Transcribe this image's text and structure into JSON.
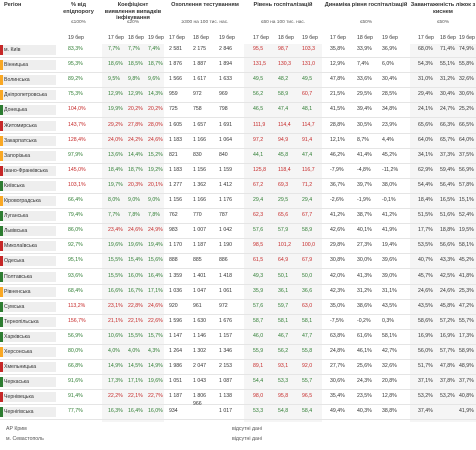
{
  "headers": {
    "region": "Регіон",
    "pct": "% від епідпорогу",
    "coef": "Коефіцієнт виявлення випадків інфікування",
    "cover": "Охоплення тестуванням",
    "hosp": "Рівень госпіталізацій",
    "dyn": "Динаміка рівня госпіталізацій",
    "beds": "Завантаженість ліжок з киснем"
  },
  "subheaders": {
    "pct": "≤100%",
    "coef": "≤20%",
    "cover": "≥300 на 100 тис. нас.",
    "hosp": "≤60 на 100 тис. нас.",
    "dyn": "≤50%",
    "beds": "≤50%",
    "pct_col": "19 бер",
    "dates": [
      "17 бер",
      "18 бер",
      "19 бер"
    ]
  },
  "rows": [
    {
      "region": "м. Київ",
      "bar": "#c62828",
      "pct": "83,3%",
      "coef": [
        "7,7%",
        "7,7%",
        "7,4%"
      ],
      "cover": [
        "2 581",
        "2 175",
        "2 846"
      ],
      "hosp": [
        "95,5",
        "98,7",
        "103,3"
      ],
      "dyn": [
        "35,8%",
        "33,9%",
        "36,9%"
      ],
      "beds": [
        "68,0%",
        "71,4%",
        "74,9%"
      ]
    },
    {
      "region": "Вінницька",
      "bar": "#f9a825",
      "pct": "95,3%",
      "coef": [
        "18,6%",
        "18,5%",
        "18,7%"
      ],
      "cover": [
        "1 876",
        "1 887",
        "1 894"
      ],
      "hosp": [
        "131,5",
        "130,3",
        "131,0"
      ],
      "dyn": [
        "12,9%",
        "7,4%",
        "6,0%"
      ],
      "beds": [
        "54,3%",
        "55,1%",
        "55,8%"
      ]
    },
    {
      "region": "Волинська",
      "bar": "#f9a825",
      "pct": "89,2%",
      "coef": [
        "9,5%",
        "9,8%",
        "9,6%"
      ],
      "cover": [
        "1 566",
        "1 617",
        "1 633"
      ],
      "hosp": [
        "49,5",
        "48,2",
        "49,5"
      ],
      "dyn": [
        "47,8%",
        "33,6%",
        "30,4%"
      ],
      "beds": [
        "31,0%",
        "31,2%",
        "32,6%"
      ]
    },
    {
      "region": "Дніпропетровська",
      "bar": "#f9a825",
      "pct": "75,3%",
      "coef": [
        "12,9%",
        "12,9%",
        "14,3%"
      ],
      "cover": [
        "959",
        "972",
        "969"
      ],
      "hosp": [
        "56,2",
        "58,9",
        "60,7"
      ],
      "dyn": [
        "21,5%",
        "29,5%",
        "28,5%"
      ],
      "beds": [
        "29,4%",
        "30,4%",
        "30,6%"
      ]
    },
    {
      "region": "Донецька",
      "bar": "#2e7d32",
      "pct": "104,0%",
      "coef": [
        "19,9%",
        "20,2%",
        "20,2%"
      ],
      "cover": [
        "725",
        "758",
        "798"
      ],
      "hosp": [
        "46,5",
        "47,4",
        "48,1"
      ],
      "dyn": [
        "41,5%",
        "39,4%",
        "34,8%"
      ],
      "beds": [
        "24,1%",
        "24,7%",
        "25,2%"
      ]
    },
    {
      "region": "Житомирська",
      "bar": "#c62828",
      "pct": "143,7%",
      "coef": [
        "29,2%",
        "27,8%",
        "28,0%"
      ],
      "cover": [
        "1 605",
        "1 657",
        "1 691"
      ],
      "hosp": [
        "111,9",
        "114,4",
        "114,7"
      ],
      "dyn": [
        "28,8%",
        "30,5%",
        "23,9%"
      ],
      "beds": [
        "65,6%",
        "66,3%",
        "66,5%"
      ]
    },
    {
      "region": "Закарпатська",
      "bar": "#f9a825",
      "pct": "128,4%",
      "coef": [
        "24,0%",
        "24,2%",
        "24,6%"
      ],
      "cover": [
        "1 183",
        "1 166",
        "1 064"
      ],
      "hosp": [
        "97,2",
        "94,9",
        "91,4"
      ],
      "dyn": [
        "12,1%",
        "8,7%",
        "4,4%"
      ],
      "beds": [
        "64,0%",
        "65,7%",
        "64,0%"
      ]
    },
    {
      "region": "Запорізька",
      "bar": "#f9a825",
      "pct": "97,9%",
      "coef": [
        "13,6%",
        "14,4%",
        "15,2%"
      ],
      "cover": [
        "821",
        "830",
        "840"
      ],
      "hosp": [
        "44,1",
        "45,8",
        "47,4"
      ],
      "dyn": [
        "46,2%",
        "41,4%",
        "45,2%"
      ],
      "beds": [
        "34,1%",
        "37,3%",
        "37,5%"
      ]
    },
    {
      "region": "Івано-Франківська",
      "bar": "#c62828",
      "pct": "145,0%",
      "coef": [
        "18,4%",
        "18,7%",
        "19,2%"
      ],
      "cover": [
        "1 183",
        "1 156",
        "1 159"
      ],
      "hosp": [
        "125,8",
        "118,4",
        "116,7"
      ],
      "dyn": [
        "-7,9%",
        "-4,8%",
        "-11,2%"
      ],
      "beds": [
        "62,9%",
        "59,4%",
        "56,9%"
      ]
    },
    {
      "region": "Київська",
      "bar": "#2e7d32",
      "pct": "103,1%",
      "coef": [
        "19,7%",
        "20,3%",
        "20,1%"
      ],
      "cover": [
        "1 277",
        "1 362",
        "1 412"
      ],
      "hosp": [
        "67,2",
        "69,3",
        "71,2"
      ],
      "dyn": [
        "36,7%",
        "39,7%",
        "38,0%"
      ],
      "beds": [
        "54,4%",
        "56,4%",
        "57,8%"
      ]
    },
    {
      "region": "Кіровоградська",
      "bar": "#f9a825",
      "pct": "66,4%",
      "coef": [
        "8,0%",
        "9,0%",
        "9,0%"
      ],
      "cover": [
        "1 156",
        "1 166",
        "1 176"
      ],
      "hosp": [
        "29,4",
        "29,5",
        "29,4"
      ],
      "dyn": [
        "-2,6%",
        "-1,9%",
        "-0,1%"
      ],
      "beds": [
        "18,4%",
        "16,5%",
        "15,1%"
      ]
    },
    {
      "region": "Луганська",
      "bar": "#2e7d32",
      "pct": "79,4%",
      "coef": [
        "7,7%",
        "7,8%",
        "7,8%"
      ],
      "cover": [
        "762",
        "770",
        "787"
      ],
      "hosp": [
        "62,3",
        "65,6",
        "67,7"
      ],
      "dyn": [
        "41,2%",
        "38,7%",
        "41,2%"
      ],
      "beds": [
        "51,5%",
        "51,6%",
        "52,4%"
      ]
    },
    {
      "region": "Львівська",
      "bar": "#2e7d32",
      "pct": "86,0%",
      "coef": [
        "23,4%",
        "24,6%",
        "24,9%"
      ],
      "cover": [
        "983",
        "1 007",
        "1 042"
      ],
      "hosp": [
        "57,6",
        "57,9",
        "58,9"
      ],
      "dyn": [
        "42,6%",
        "40,1%",
        "41,9%"
      ],
      "beds": [
        "17,7%",
        "18,8%",
        "19,5%"
      ]
    },
    {
      "region": "Миколаївська",
      "bar": "#c62828",
      "pct": "92,7%",
      "coef": [
        "19,6%",
        "19,6%",
        "19,4%"
      ],
      "cover": [
        "1 170",
        "1 187",
        "1 190"
      ],
      "hosp": [
        "98,5",
        "101,2",
        "100,0"
      ],
      "dyn": [
        "29,8%",
        "27,3%",
        "19,4%"
      ],
      "beds": [
        "53,5%",
        "56,6%",
        "58,1%"
      ]
    },
    {
      "region": "Одеська",
      "bar": "#c62828",
      "pct": "95,1%",
      "coef": [
        "15,5%",
        "15,4%",
        "15,6%"
      ],
      "cover": [
        "888",
        "885",
        "886"
      ],
      "hosp": [
        "61,5",
        "64,9",
        "67,9"
      ],
      "dyn": [
        "30,8%",
        "30,0%",
        "39,6%"
      ],
      "beds": [
        "40,7%",
        "43,3%",
        "45,2%"
      ]
    },
    {
      "region": "Полтавська",
      "bar": "#2e7d32",
      "pct": "93,6%",
      "coef": [
        "15,5%",
        "16,0%",
        "16,4%"
      ],
      "cover": [
        "1 359",
        "1 401",
        "1 418"
      ],
      "hosp": [
        "49,3",
        "50,1",
        "50,0"
      ],
      "dyn": [
        "42,0%",
        "41,3%",
        "39,0%"
      ],
      "beds": [
        "45,7%",
        "42,5%",
        "41,8%"
      ]
    },
    {
      "region": "Рівненська",
      "bar": "#f9a825",
      "pct": "68,4%",
      "coef": [
        "16,6%",
        "16,7%",
        "17,1%"
      ],
      "cover": [
        "1 036",
        "1 047",
        "1 061"
      ],
      "hosp": [
        "35,9",
        "36,1",
        "36,6"
      ],
      "dyn": [
        "42,3%",
        "31,2%",
        "31,1%"
      ],
      "beds": [
        "24,6%",
        "24,6%",
        "25,3%"
      ]
    },
    {
      "region": "Сумська",
      "bar": "#2e7d32",
      "pct": "113,2%",
      "coef": [
        "23,1%",
        "22,8%",
        "24,6%"
      ],
      "cover": [
        "920",
        "961",
        "972"
      ],
      "hosp": [
        "57,6",
        "59,7",
        "63,0"
      ],
      "dyn": [
        "35,0%",
        "38,6%",
        "43,5%"
      ],
      "beds": [
        "43,5%",
        "45,8%",
        "47,2%"
      ]
    },
    {
      "region": "Тернопільська",
      "bar": "#2e7d32",
      "pct": "156,7%",
      "coef": [
        "21,1%",
        "22,1%",
        "22,6%"
      ],
      "cover": [
        "1 596",
        "1 630",
        "1 676"
      ],
      "hosp": [
        "58,7",
        "58,1",
        "58,1"
      ],
      "dyn": [
        "-7,5%",
        "-0,2%",
        "0,3%"
      ],
      "beds": [
        "58,6%",
        "57,2%",
        "55,7%"
      ]
    },
    {
      "region": "Харківська",
      "bar": "#2e7d32",
      "pct": "56,9%",
      "coef": [
        "10,6%",
        "15,5%",
        "15,7%"
      ],
      "cover": [
        "1 147",
        "1 146",
        "1 157"
      ],
      "hosp": [
        "46,0",
        "46,7",
        "47,7"
      ],
      "dyn": [
        "63,8%",
        "61,6%",
        "58,1%"
      ],
      "beds": [
        "16,9%",
        "16,9%",
        "17,3%"
      ]
    },
    {
      "region": "Херсонська",
      "bar": "#f9a825",
      "pct": "80,0%",
      "coef": [
        "4,0%",
        "4,0%",
        "4,3%"
      ],
      "cover": [
        "1 264",
        "1 302",
        "1 346"
      ],
      "hosp": [
        "55,9",
        "56,2",
        "55,8"
      ],
      "dyn": [
        "24,8%",
        "46,1%",
        "42,7%"
      ],
      "beds": [
        "56,0%",
        "57,7%",
        "58,9%"
      ]
    },
    {
      "region": "Хмельницька",
      "bar": "#c62828",
      "pct": "66,8%",
      "coef": [
        "14,9%",
        "14,5%",
        "14,9%"
      ],
      "cover": [
        "1 986",
        "2 047",
        "2 153"
      ],
      "hosp": [
        "89,1",
        "93,1",
        "92,0"
      ],
      "dyn": [
        "27,7%",
        "25,6%",
        "32,6%"
      ],
      "beds": [
        "51,7%",
        "47,8%",
        "48,9%"
      ]
    },
    {
      "region": "Черкаська",
      "bar": "#2e7d32",
      "pct": "91,6%",
      "coef": [
        "17,3%",
        "17,1%",
        "19,6%"
      ],
      "cover": [
        "1 051",
        "1 043",
        "1 087"
      ],
      "hosp": [
        "54,4",
        "53,3",
        "55,7"
      ],
      "dyn": [
        "30,6%",
        "24,3%",
        "20,8%"
      ],
      "beds": [
        "37,1%",
        "37,8%",
        "37,7%"
      ]
    },
    {
      "region": "Чернівецька",
      "bar": "#c62828",
      "pct": "91,4%",
      "coef": [
        "22,2%",
        "22,1%",
        "22,7%"
      ],
      "cover": [
        "1 187",
        "1 806",
        "1 138"
      ],
      "hosp": [
        "98,0",
        "95,8",
        "96,5"
      ],
      "dyn": [
        "35,4%",
        "23,5%",
        "12,8%"
      ],
      "beds": [
        "53,2%",
        "53,2%",
        "40,8%"
      ]
    },
    {
      "region": "Чернігівська",
      "bar": "#2e7d32",
      "pct": "77,7%",
      "coef": [
        "16,3%",
        "16,4%",
        "16,0%"
      ],
      "cover": [
        "934",
        "",
        "1 017"
      ],
      "hosp": [
        "53,3",
        "54,8",
        "58,4"
      ],
      "dyn": [
        "49,4%",
        "40,3%",
        "38,8%"
      ],
      "beds": [
        "37,4%",
        "",
        "41,9%"
      ]
    }
  ],
  "extra_cover_note": "966",
  "bottom": [
    {
      "region": "АР Крим",
      "text": "відсутні дані"
    },
    {
      "region": "м. Севастополь",
      "text": "відсутні дані"
    }
  ],
  "colors": {
    "green": "#2e7d32",
    "red": "#c62828",
    "yellow": "#f9a825",
    "grey_bg": "#f0f0f0"
  }
}
